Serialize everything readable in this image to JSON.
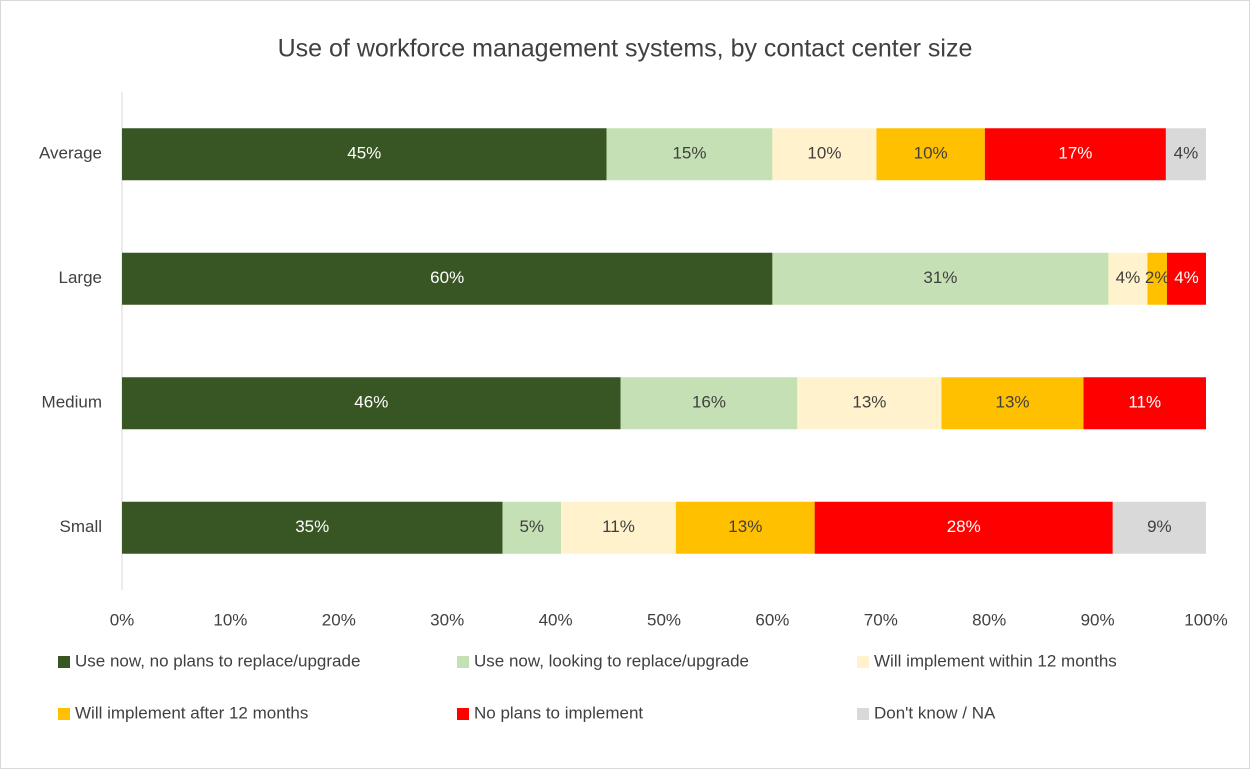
{
  "chart_data": {
    "type": "stacked-bar-horizontal",
    "title": "Use of workforce management systems, by contact center size",
    "categories": [
      "Average",
      "Large",
      "Medium",
      "Small"
    ],
    "series": [
      {
        "name": "Use now, no plans to replace/upgrade",
        "color": "#375623",
        "values": [
          44.7,
          60.0,
          46.0,
          35.1
        ],
        "value_labels": [
          "45%",
          "60%",
          "46%",
          "35%"
        ]
      },
      {
        "name": "Use now, looking to replace/upgrade",
        "color": "#c5e0b4",
        "values": [
          15.3,
          31.0,
          16.3,
          5.4
        ],
        "value_labels": [
          "15%",
          "31%",
          "16%",
          "5%"
        ]
      },
      {
        "name": "Will implement within 12 months",
        "color": "#fff2cc",
        "values": [
          9.6,
          3.6,
          13.3,
          10.6
        ],
        "value_labels": [
          "10%",
          "4%",
          "13%",
          "11%"
        ]
      },
      {
        "name": "Will implement after 12 months",
        "color": "#ffc000",
        "values": [
          10.0,
          1.8,
          13.1,
          12.8
        ],
        "value_labels": [
          "10%",
          "2%",
          "13%",
          "13%"
        ]
      },
      {
        "name": "No plans to implement",
        "color": "#ff0000",
        "values": [
          16.7,
          3.6,
          11.3,
          27.5
        ],
        "value_labels": [
          "17%",
          "4%",
          "11%",
          "28%"
        ]
      },
      {
        "name": "Don't know / NA",
        "color": "#d9d9d9",
        "values": [
          3.7,
          0,
          0,
          8.6
        ],
        "value_labels": [
          "4%",
          null,
          null,
          "9%"
        ]
      }
    ],
    "xlim": [
      0,
      100
    ],
    "xticks": [
      {
        "value": 0,
        "label": "0%"
      },
      {
        "value": 10,
        "label": "10%"
      },
      {
        "value": 20,
        "label": "20%"
      },
      {
        "value": 30,
        "label": "30%"
      },
      {
        "value": 40,
        "label": "40%"
      },
      {
        "value": 50,
        "label": "50%"
      },
      {
        "value": 60,
        "label": "60%"
      },
      {
        "value": 70,
        "label": "70%"
      },
      {
        "value": 80,
        "label": "80%"
      },
      {
        "value": 90,
        "label": "90%"
      },
      {
        "value": 100,
        "label": "100%"
      }
    ],
    "legend": "bottom"
  }
}
